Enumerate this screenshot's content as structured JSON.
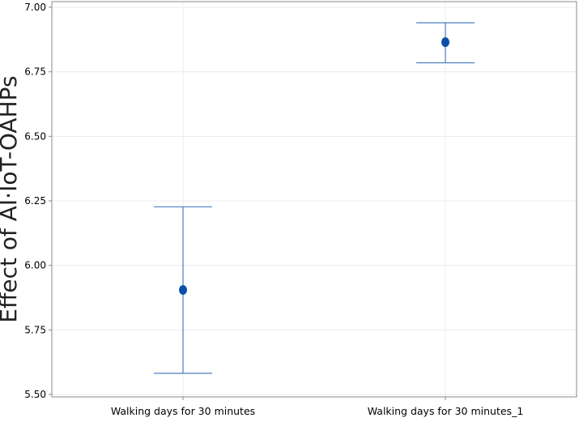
{
  "chart_data": {
    "type": "scatter",
    "title": "",
    "xlabel": "",
    "ylabel": "Effect of AI·IoT-OAHPs",
    "categories": [
      "Walking days for 30 minutes",
      "Walking days for 30 minutes_1"
    ],
    "means": [
      5.905,
      6.865
    ],
    "lower": [
      5.582,
      6.785
    ],
    "upper": [
      6.227,
      6.94
    ],
    "ylim": [
      5.5,
      7.0
    ],
    "yticks": [
      "5.50",
      "5.75",
      "6.00",
      "6.25",
      "6.50",
      "6.75",
      "7.00"
    ],
    "grid": true,
    "legend": "none",
    "colors": {
      "point": "#0b4fa8",
      "errorbar": "#4a7fc0",
      "frame": "#8a8a8a",
      "grid": "#ececec"
    }
  }
}
